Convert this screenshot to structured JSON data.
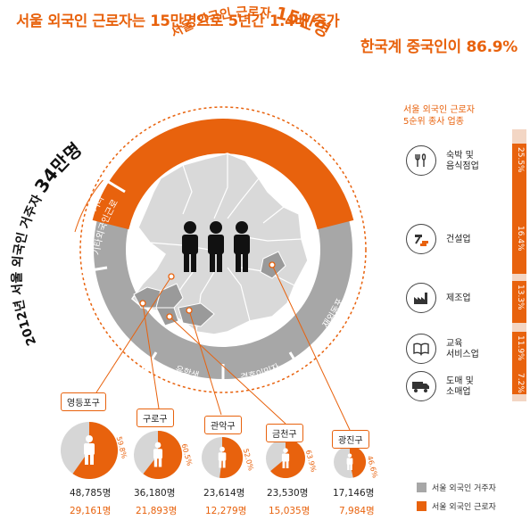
{
  "headline": {
    "line1": "서울 외국인 근로자는 15만명으로 5년간 1.4배 증가",
    "line2": "한국계 중국인이 86.9%"
  },
  "ring": {
    "workers_prefix": "서울 외국인 근로자",
    "workers_value": "15만명",
    "chinese_label": "한국계 중국인",
    "chinese_pct": "86.9%",
    "other_label": "기타",
    "residents_prefix": "2012년 서울 외국인 거주자",
    "residents_value": "34만명",
    "segments": [
      "기타외국인근로",
      "유학생",
      "결혼이민자",
      "재외동포"
    ]
  },
  "top5": {
    "title_line1": "서울 외국인 근로자",
    "title_line2": "5순위 종사 업종",
    "items": [
      {
        "label": "숙박 및\n음식점업",
        "pct": "25.5%",
        "value": 25.5,
        "icon": "fork-spoon-icon"
      },
      {
        "label": "건설업",
        "pct": "16.4%",
        "value": 16.4,
        "icon": "hammer-brick-icon"
      },
      {
        "label": "제조업",
        "pct": "13.3%",
        "value": 13.3,
        "icon": "factory-icon"
      },
      {
        "label": "교육\n서비스업",
        "pct": "11.9%",
        "value": 11.9,
        "icon": "book-icon"
      },
      {
        "label": "도매 및\n소매업",
        "pct": "7.2%",
        "value": 7.2,
        "icon": "truck-icon"
      }
    ]
  },
  "districts": [
    {
      "name": "영등포구",
      "pct": "59.8%",
      "ratio": 0.598,
      "residents": "48,785명",
      "workers": "29,161명"
    },
    {
      "name": "구로구",
      "pct": "60.5%",
      "ratio": 0.605,
      "residents": "36,180명",
      "workers": "21,893명"
    },
    {
      "name": "관악구",
      "pct": "52.0%",
      "ratio": 0.52,
      "residents": "23,614명",
      "workers": "12,279명"
    },
    {
      "name": "금천구",
      "pct": "63.9%",
      "ratio": 0.639,
      "residents": "23,530명",
      "workers": "15,035명"
    },
    {
      "name": "광진구",
      "pct": "46.6%",
      "ratio": 0.466,
      "residents": "17,146명",
      "workers": "7,984명"
    }
  ],
  "legend": {
    "residents": "서울 외국인 거주자",
    "workers": "서울 외국인 근로자"
  },
  "colors": {
    "accent": "#e8620d",
    "gray": "#a7a7a7",
    "map": "#d9d9d9"
  }
}
